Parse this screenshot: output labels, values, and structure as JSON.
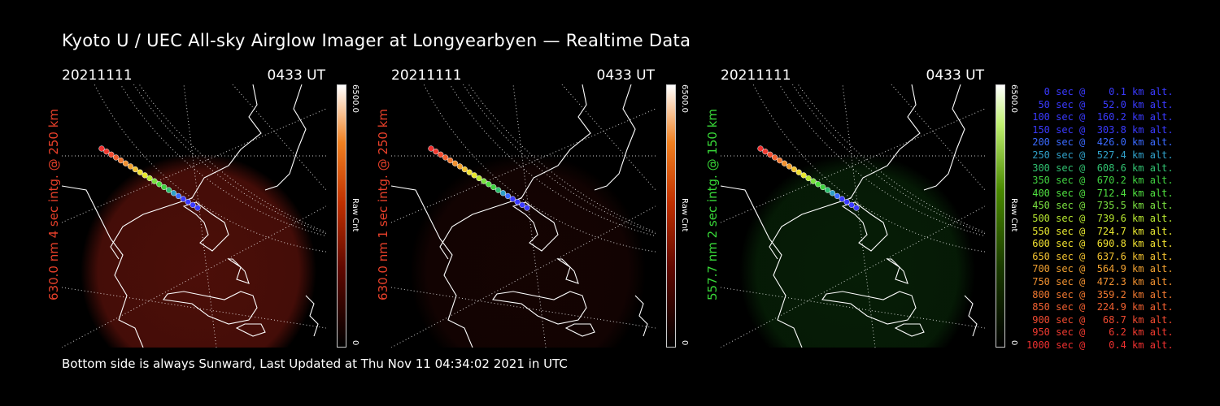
{
  "title": "Kyoto U / UEC All-sky Airglow Imager at Longyearbyen — Realtime Data",
  "footer": "Bottom side is always Sunward, Last Updated at Thu Nov 11 04:34:02 2021 in UTC",
  "panels": [
    {
      "date": "20211111",
      "time": "0433 UT",
      "label": "630.0 nm 4 sec intg. @ 250 km",
      "label_color": "#e8402a",
      "cbar_max": "6500.0",
      "cbar_unit": "Raw Cnt",
      "cbar_min": "0",
      "glow": "#8a1a10",
      "glow_strength": 0.55,
      "colormap": "red"
    },
    {
      "date": "20211111",
      "time": "0433 UT",
      "label": "630.0 nm 1 sec intg. @ 250 km",
      "label_color": "#e8402a",
      "cbar_max": "6500.0",
      "cbar_unit": "Raw Cnt",
      "cbar_min": "0",
      "glow": "#3a0a06",
      "glow_strength": 0.35,
      "colormap": "red"
    },
    {
      "date": "20211111",
      "time": "0433 UT",
      "label": "557.7 nm 2 sec intg. @ 150 km",
      "label_color": "#38d838",
      "cbar_max": "6500.0",
      "cbar_unit": "Raw Cnt",
      "cbar_min": "0",
      "glow": "#0c3a0c",
      "glow_strength": 0.5,
      "colormap": "green"
    }
  ],
  "legend": [
    {
      "text": "   0 sec @    0.1 km alt.",
      "color": "#3a3aff"
    },
    {
      "text": "  50 sec @   52.0 km alt.",
      "color": "#3a3aff"
    },
    {
      "text": " 100 sec @  160.2 km alt.",
      "color": "#3a3aff"
    },
    {
      "text": " 150 sec @  303.8 km alt.",
      "color": "#3a3aff"
    },
    {
      "text": " 200 sec @  426.0 km alt.",
      "color": "#3a6aff"
    },
    {
      "text": " 250 sec @  527.4 km alt.",
      "color": "#30a0c8"
    },
    {
      "text": " 300 sec @  608.6 km alt.",
      "color": "#30c070"
    },
    {
      "text": " 350 sec @  670.2 km alt.",
      "color": "#40d040"
    },
    {
      "text": " 400 sec @  712.4 km alt.",
      "color": "#50e040"
    },
    {
      "text": " 450 sec @  735.5 km alt.",
      "color": "#7ae040"
    },
    {
      "text": " 500 sec @  739.6 km alt.",
      "color": "#b8e830"
    },
    {
      "text": " 550 sec @  724.7 km alt.",
      "color": "#e8e830"
    },
    {
      "text": " 600 sec @  690.8 km alt.",
      "color": "#f0e030"
    },
    {
      "text": " 650 sec @  637.6 km alt.",
      "color": "#f0c030"
    },
    {
      "text": " 700 sec @  564.9 km alt.",
      "color": "#f0a030"
    },
    {
      "text": " 750 sec @  472.3 km alt.",
      "color": "#f09030"
    },
    {
      "text": " 800 sec @  359.2 km alt.",
      "color": "#f07830"
    },
    {
      "text": " 850 sec @  224.9 km alt.",
      "color": "#f06030"
    },
    {
      "text": " 900 sec @   68.7 km alt.",
      "color": "#f04a30"
    },
    {
      "text": " 950 sec @    6.2 km alt.",
      "color": "#f03a30"
    },
    {
      "text": "1000 sec @    0.4 km alt.",
      "color": "#f03030"
    }
  ]
}
